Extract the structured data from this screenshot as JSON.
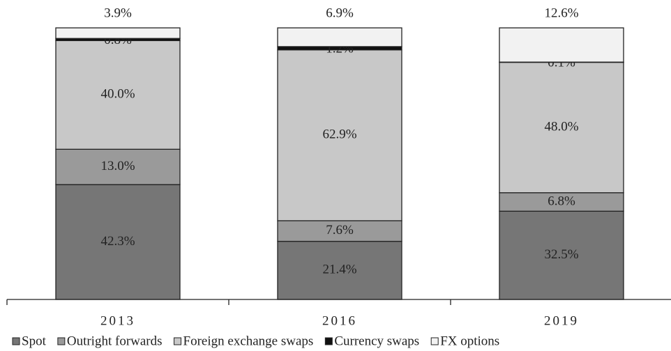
{
  "chart_data": {
    "type": "stacked_bar",
    "categories": [
      "2013",
      "2016",
      "2019"
    ],
    "ylim": [
      0,
      100
    ],
    "legend": "bottom",
    "series": [
      {
        "name": "Spot",
        "color": "#767676",
        "values": [
          42.3,
          21.4,
          32.5
        ],
        "value_labels": [
          "42.3%",
          "21.4%",
          "32.5%"
        ]
      },
      {
        "name": "Outright forwards",
        "color": "#9a9a9a",
        "values": [
          13.0,
          7.6,
          6.8
        ],
        "value_labels": [
          "13.0%",
          "7.6%",
          "6.8%"
        ]
      },
      {
        "name": "Foreign exchange swaps",
        "color": "#c8c8c8",
        "values": [
          40.0,
          62.9,
          48.0
        ],
        "value_labels": [
          "40.0%",
          "62.9%",
          "48.0%"
        ]
      },
      {
        "name": "Currency swaps",
        "color": "#111111",
        "values": [
          0.8,
          1.2,
          0.1
        ],
        "value_labels": [
          "0.8%",
          "1.2%",
          "0.1%"
        ]
      },
      {
        "name": "FX options",
        "color": "#f2f2f2",
        "values": [
          3.9,
          6.9,
          12.6
        ],
        "value_labels": [
          "3.9%",
          "6.9%",
          "12.6%"
        ]
      }
    ]
  }
}
